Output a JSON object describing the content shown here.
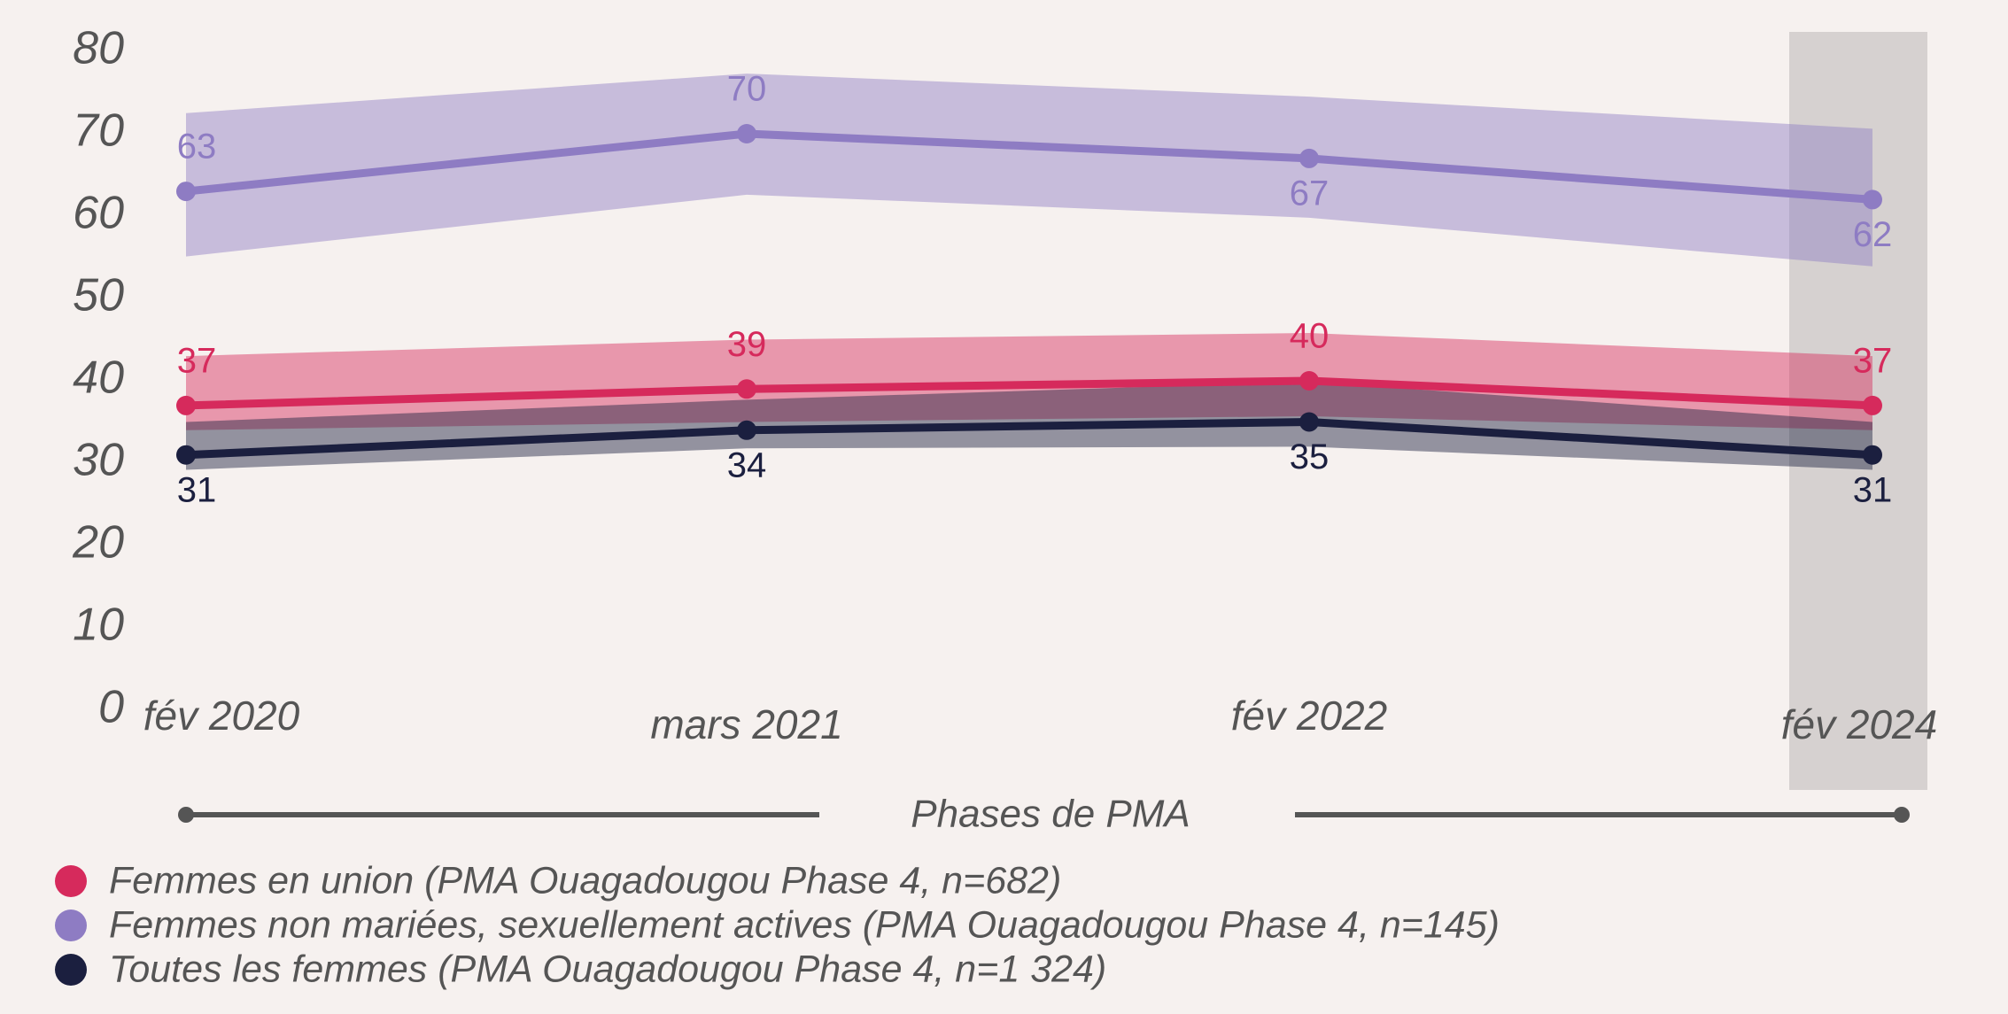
{
  "chart_data": {
    "type": "line",
    "x_label": "Phases de PMA",
    "categories": [
      "fév 2020",
      "mars 2021",
      "fév 2022",
      "fév 2024"
    ],
    "ylim": [
      0,
      80
    ],
    "yticks": [
      0,
      10,
      20,
      30,
      40,
      50,
      60,
      70,
      80
    ],
    "series": [
      {
        "name": "Femmes non mariées, sexuellement actives (PMA Ouagadougou Phase 4, n=145)",
        "color": "#8e7cc3",
        "values": [
          63,
          70,
          67,
          62
        ],
        "upper": [
          72.5,
          77.3,
          74.5,
          70.6
        ],
        "lower": [
          55.1,
          62.6,
          59.8,
          53.9
        ]
      },
      {
        "name": "Femmes en union (PMA Ouagadougou Phase 4, n=682)",
        "color": "#d62a5c",
        "values": [
          37,
          39,
          40,
          37
        ],
        "upper": [
          43,
          45,
          45.8,
          43
        ],
        "lower": [
          34,
          35,
          35.7,
          34
        ]
      },
      {
        "name": "Toutes les femmes (PMA Ouagadougou Phase 4, n=1 324)",
        "color": "#1b1f3f",
        "values": [
          31,
          34,
          35,
          31
        ],
        "upper": [
          35,
          37.7,
          39.9,
          35
        ],
        "lower": [
          29.2,
          31.8,
          32,
          29.2
        ]
      }
    ],
    "legend_order": [
      1,
      0,
      2
    ]
  }
}
